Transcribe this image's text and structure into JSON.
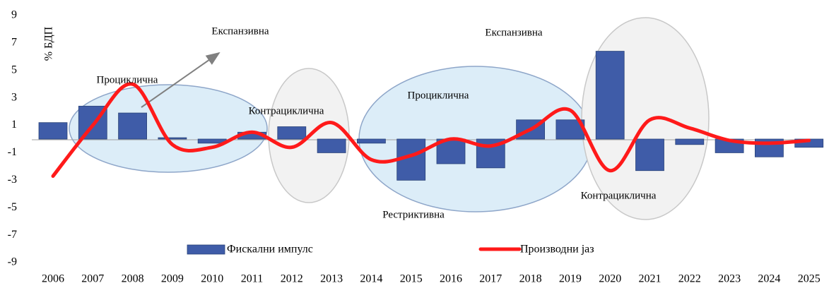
{
  "chart_data": {
    "type": "bar_line",
    "ylabel": "% БДП",
    "categories": [
      "2006",
      "2007",
      "2008",
      "2009",
      "2010",
      "2011",
      "2012",
      "2013",
      "2014",
      "2015",
      "2016",
      "2017",
      "2018",
      "2019",
      "2020",
      "2021",
      "2022",
      "2023",
      "2024",
      "2025"
    ],
    "series": [
      {
        "name": "Фискални импулс",
        "color": "#3f5ca8",
        "type": "bar",
        "values": [
          1.2,
          2.4,
          1.9,
          0.1,
          -0.3,
          0.5,
          0.9,
          -1.0,
          -0.3,
          -3.0,
          -1.8,
          -2.1,
          1.4,
          1.4,
          6.4,
          -2.3,
          -0.4,
          -1.0,
          -1.3,
          -0.6
        ]
      },
      {
        "name": "Производни јаз",
        "color": "#ff1a1a",
        "type": "line",
        "values": [
          -2.7,
          1.0,
          4.0,
          -0.4,
          -0.6,
          0.5,
          -0.6,
          1.2,
          -1.5,
          -1.2,
          0.0,
          -0.5,
          0.7,
          2.1,
          -2.3,
          1.4,
          0.8,
          -0.1,
          -0.3,
          -0.1
        ]
      }
    ],
    "ylim": [
      -9,
      9
    ],
    "yticks": [
      -9,
      -7,
      -5,
      -3,
      -1,
      1,
      3,
      5,
      7,
      9
    ],
    "annotations": [
      "Експанзивна",
      "Проциклична",
      "Контрациклична",
      "Експанзивна",
      "Проциклична",
      "Рестриктивна",
      "Контрациклична"
    ]
  }
}
